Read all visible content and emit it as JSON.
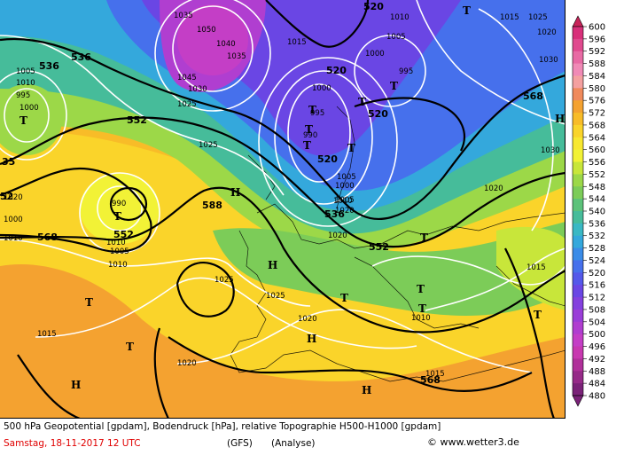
{
  "footer": {
    "line1": "500 hPa Geopotential [gpdam], Bodendruck [hPa], relative Topographie H500-H1000 [gpdam]",
    "date": "Samstag, 18-11-2017  12 UTC",
    "model": "(GFS)",
    "run": "(Analyse)",
    "copyright": "© www.wetter3.de"
  },
  "legend": {
    "values": [
      600,
      596,
      592,
      588,
      584,
      580,
      576,
      572,
      568,
      564,
      560,
      556,
      552,
      548,
      544,
      540,
      536,
      532,
      528,
      524,
      520,
      516,
      512,
      508,
      504,
      500,
      496,
      492,
      488,
      484,
      480
    ],
    "colors": [
      "#c8245a",
      "#d8307a",
      "#e04a8e",
      "#e86aa4",
      "#f08ab6",
      "#f4a0a0",
      "#f08a5c",
      "#f4a230",
      "#f8bc28",
      "#fad42a",
      "#f8e830",
      "#f2f236",
      "#c8e63a",
      "#9cd848",
      "#7ccc58",
      "#5cc27a",
      "#46bc9a",
      "#3ab8c4",
      "#34a8dc",
      "#3a8ce8",
      "#4670ec",
      "#5458ea",
      "#6a46e4",
      "#8440de",
      "#9a3ed8",
      "#b03ed0",
      "#c43ec6",
      "#c838b0",
      "#b0309a",
      "#962a88",
      "#7a2278"
    ]
  },
  "map": {
    "geopotential_labels": [
      "536",
      "536",
      "520",
      "520",
      "520",
      "552",
      "520",
      "536",
      "552",
      "552",
      "588",
      "568",
      "568",
      "568",
      "35",
      "52"
    ],
    "pressure_labels": [
      "1035",
      "1050",
      "1040",
      "1035",
      "1045",
      "1015",
      "1010",
      "1005",
      "1000",
      "995",
      "1000",
      "1005",
      "1010",
      "995",
      "1000",
      "990",
      "1000",
      "1005",
      "995",
      "1010",
      "1025",
      "1025",
      "1030",
      "1025",
      "1020",
      "1015",
      "1020",
      "1010",
      "1020",
      "1025",
      "1020",
      "1010",
      "1020",
      "1015",
      "1015",
      "1030",
      "1020",
      "1025",
      "990",
      "1000",
      "1005",
      "1010",
      "1020",
      "1010",
      "1030",
      "1015",
      "1005"
    ],
    "high_markers": [
      "H",
      "H",
      "H",
      "H",
      "H",
      "H"
    ],
    "low_markers": [
      "T",
      "T",
      "T",
      "T",
      "T",
      "T",
      "T",
      "T",
      "T",
      "T",
      "T",
      "T",
      "T",
      "T",
      "T",
      "T"
    ]
  }
}
